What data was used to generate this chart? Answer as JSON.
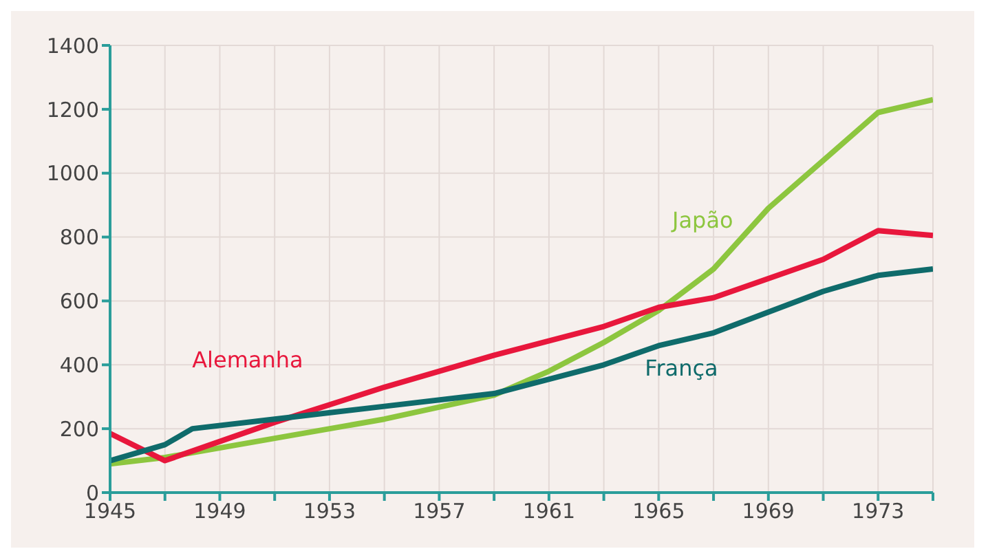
{
  "chart_data": {
    "type": "line",
    "xlim": [
      1945,
      1975
    ],
    "ylim": [
      0,
      1400
    ],
    "xticks": [
      1945,
      {
        "value": 1947,
        "label": null
      },
      1949,
      {
        "value": 1951,
        "label": null
      },
      1953,
      {
        "value": 1955,
        "label": null
      },
      1957,
      {
        "value": 1959,
        "label": null
      },
      1961,
      {
        "value": 1963,
        "label": null
      },
      1965,
      {
        "value": 1967,
        "label": null
      },
      1969,
      {
        "value": 1971,
        "label": null
      },
      1973,
      {
        "value": 1975,
        "label": null
      }
    ],
    "yticks": [
      0,
      200,
      400,
      600,
      800,
      1000,
      1200,
      1400
    ],
    "grid": true,
    "marker": "none",
    "line_style": "solid",
    "series": [
      {
        "name": "Japão",
        "color": "#8dc63f",
        "x": [
          1945,
          1947,
          1951,
          1955,
          1959,
          1961,
          1963,
          1965,
          1967,
          1969,
          1971,
          1973,
          1975
        ],
        "values": [
          90,
          110,
          170,
          230,
          305,
          380,
          470,
          570,
          700,
          890,
          1040,
          1190,
          1230
        ]
      },
      {
        "name": "Alemanha",
        "color": "#e8173c",
        "x": [
          1945,
          1947,
          1951,
          1955,
          1959,
          1963,
          1965,
          1967,
          1971,
          1973,
          1975
        ],
        "values": [
          185,
          100,
          220,
          330,
          430,
          520,
          580,
          610,
          730,
          820,
          805
        ]
      },
      {
        "name": "França",
        "color": "#0f6b6b",
        "x": [
          1945,
          1947,
          1948,
          1951,
          1955,
          1959,
          1963,
          1965,
          1967,
          1971,
          1973,
          1975
        ],
        "values": [
          100,
          150,
          200,
          230,
          270,
          310,
          400,
          460,
          500,
          630,
          680,
          700
        ]
      }
    ]
  }
}
